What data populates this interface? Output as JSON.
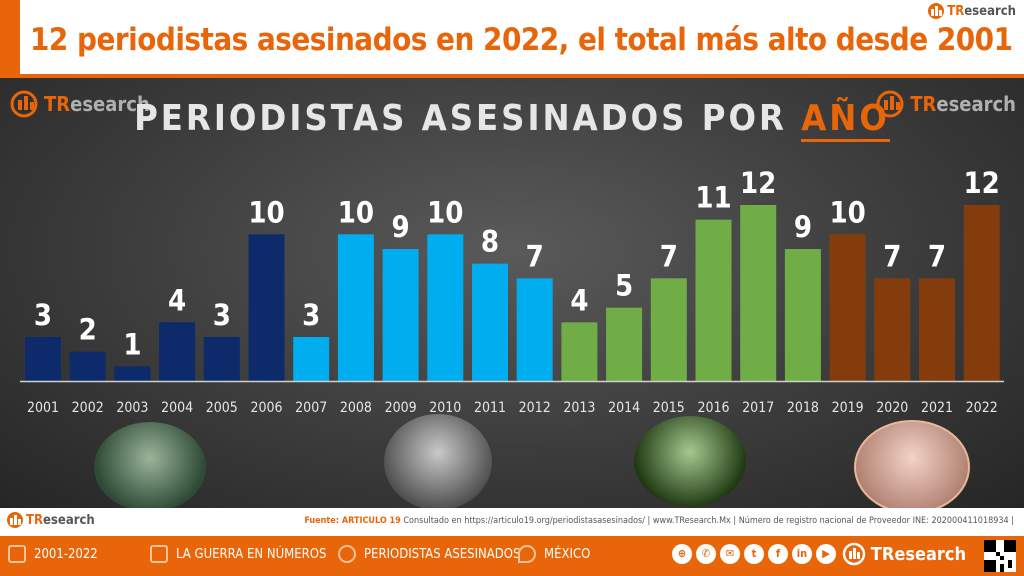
{
  "headline": "12 periodistas asesinados en 2022, el total más alto desde 2001",
  "brand": {
    "name_prefix": "TR",
    "name_suffix": "esearch"
  },
  "chart_title": {
    "main": "PERIODISTAS ASESINADOS POR ",
    "highlight": "AÑO"
  },
  "colors": {
    "accent": "#e8650a",
    "fox": "#0d2a6b",
    "calderon": "#00adef",
    "pena_nieto": "#70ad47",
    "amlo": "#843c0c"
  },
  "photos": [
    "photo-portrait-1",
    "photo-portrait-2",
    "photo-portrait-3",
    "photo-portrait-4"
  ],
  "chart_data": {
    "type": "bar",
    "title": "PERIODISTAS ASESINADOS POR AÑO",
    "categories": [
      "2001",
      "2002",
      "2003",
      "2004",
      "2005",
      "2006",
      "2007",
      "2008",
      "2009",
      "2010",
      "2011",
      "2012",
      "2013",
      "2014",
      "2015",
      "2016",
      "2017",
      "2018",
      "2019",
      "2020",
      "2021",
      "2022"
    ],
    "values": [
      3,
      2,
      1,
      4,
      3,
      10,
      3,
      10,
      9,
      10,
      8,
      7,
      4,
      5,
      7,
      11,
      12,
      9,
      10,
      7,
      7,
      12
    ],
    "color_groups": [
      "fox",
      "fox",
      "fox",
      "fox",
      "fox",
      "fox",
      "calderon",
      "calderon",
      "calderon",
      "calderon",
      "calderon",
      "calderon",
      "pena_nieto",
      "pena_nieto",
      "pena_nieto",
      "pena_nieto",
      "pena_nieto",
      "pena_nieto",
      "amlo",
      "amlo",
      "amlo",
      "amlo"
    ],
    "data_labels": true,
    "grid": false,
    "ylim": [
      0,
      12
    ]
  },
  "source": {
    "label": "Fuente: ARTICULO 19",
    "text": " Consultado en https://articulo19.org/periodistasasesinados/  |  www.TResearch.Mx | Número de registro nacional de Proveedor INE: 202000411018934  |"
  },
  "footer": {
    "items": [
      "2001-2022",
      "LA GUERRA EN NÚMEROS",
      "PERIODISTAS ASESINADOS",
      "MÉXICO"
    ],
    "social_icons": [
      "globe-icon",
      "phone-icon",
      "email-icon",
      "twitter-icon",
      "facebook-icon",
      "linkedin-icon",
      "youtube-icon"
    ],
    "social_glyphs": [
      "⊕",
      "✆",
      "✉",
      "t",
      "f",
      "in",
      "▶"
    ]
  }
}
